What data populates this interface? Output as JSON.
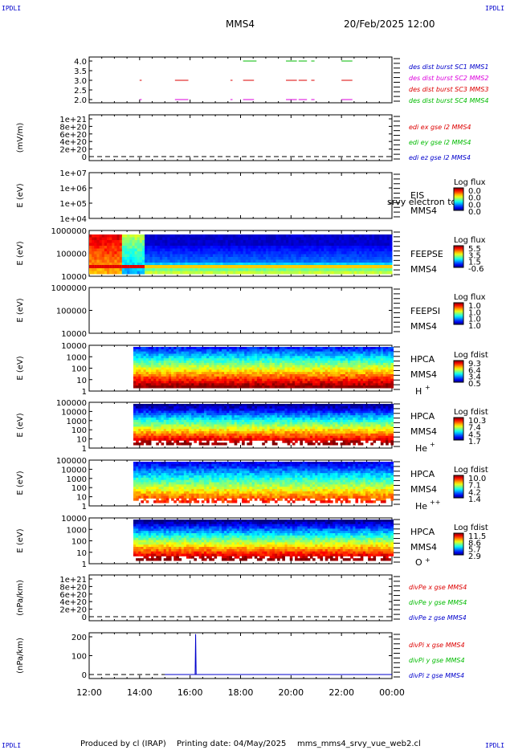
{
  "header": {
    "corner_tl": "IPDLI",
    "corner_tr": "IPDLI",
    "corner_bl": "IPDLI",
    "corner_br": "IPDLI",
    "spacecraft": "MMS4",
    "datetime": "20/Feb/2025 12:00"
  },
  "footer": {
    "produced": "Produced by cl (IRAP)",
    "printing": "Printing date: 04/May/2025",
    "file": "mms_mms4_srvy_vue_web2.cl"
  },
  "time_axis": {
    "ticks": [
      "12:00",
      "14:00",
      "16:00",
      "18:00",
      "20:00",
      "22:00",
      "00:00"
    ]
  },
  "colors": {
    "c1": "#0000cc",
    "c2": "#dd00dd",
    "c3": "#dd0000",
    "c4": "#00bb00",
    "overlay": "#000080"
  },
  "chart_data": [
    {
      "id": "burst",
      "type": "scatter",
      "yticks": [
        "4.0",
        "3.5",
        "3.0",
        "2.5",
        "2.0"
      ],
      "ylim": [
        1.8,
        4.2
      ],
      "legend": [
        {
          "label": "des dist burst SC1 MMS1",
          "color": "#0000cc"
        },
        {
          "label": "des dist burst SC2 MMS2",
          "color": "#dd00dd"
        },
        {
          "label": "des dist burst SC3 MMS3",
          "color": "#dd0000"
        },
        {
          "label": "des dist burst SC4 MMS4",
          "color": "#00bb00"
        }
      ],
      "series": [
        {
          "y": 4.0,
          "color": "#00bb00",
          "segments": [
            [
              18.1,
              18.6
            ],
            [
              19.8,
              20.2
            ],
            [
              20.3,
              20.6
            ],
            [
              20.8,
              20.9
            ],
            [
              22.0,
              22.4
            ]
          ]
        },
        {
          "y": 3.0,
          "color": "#dd0000",
          "segments": [
            [
              14.0,
              14.05
            ],
            [
              15.4,
              15.9
            ],
            [
              17.6,
              17.65
            ],
            [
              18.1,
              18.5
            ],
            [
              19.8,
              20.2
            ],
            [
              20.3,
              20.6
            ],
            [
              20.8,
              20.9
            ],
            [
              22.0,
              22.4
            ]
          ]
        },
        {
          "y": 2.0,
          "color": "#dd00dd",
          "segments": [
            [
              14.0,
              14.05
            ],
            [
              15.4,
              15.9
            ],
            [
              17.6,
              17.65
            ],
            [
              18.1,
              18.5
            ],
            [
              19.8,
              20.2
            ],
            [
              20.3,
              20.6
            ],
            [
              20.8,
              20.9
            ],
            [
              22.0,
              22.4
            ]
          ]
        }
      ]
    },
    {
      "id": "edi",
      "type": "line",
      "ylabel": "(mV/m)",
      "yticks": [
        "1e+21",
        "8e+20",
        "6e+20",
        "4e+20",
        "2e+20",
        "0"
      ],
      "legend": [
        {
          "label": "edi ex gse l2 MMS4",
          "color": "#dd0000"
        },
        {
          "label": "edi ey gse l2 MMS4",
          "color": "#00bb00"
        },
        {
          "label": "edi ez gse l2 MMS4",
          "color": "#0000cc"
        }
      ],
      "zero_line": true
    },
    {
      "id": "eis",
      "type": "heatmap",
      "ylabel": "E (eV)",
      "yticks": [
        "1e+07",
        "1e+06",
        "1e+05",
        "1e+04"
      ],
      "labels": [
        "EIS",
        "MMS4"
      ],
      "overlay_text": "srvy electron to",
      "colorbar": {
        "title": "Log flux",
        "ticks": [
          "0.0",
          "0.0",
          "0.0",
          "0.0"
        ]
      },
      "fill": "none"
    },
    {
      "id": "feepse",
      "type": "heatmap",
      "ylabel": "E (eV)",
      "yticks": [
        "1000000",
        "100000",
        "10000"
      ],
      "labels": [
        "FEEPSE",
        "MMS4"
      ],
      "colorbar": {
        "title": "Log flux",
        "ticks": [
          "5.5",
          "3.5",
          "1.5",
          "-0.6"
        ]
      },
      "fill": "feeps"
    },
    {
      "id": "feepsi",
      "type": "heatmap",
      "ylabel": "E (eV)",
      "yticks": [
        "1000000",
        "100000",
        "10000"
      ],
      "labels": [
        "FEEPSI",
        "MMS4"
      ],
      "colorbar": {
        "title": "Log flux",
        "ticks": [
          "1.0",
          "1.0",
          "1.0",
          "1.0"
        ]
      },
      "fill": "none"
    },
    {
      "id": "hpca_h",
      "type": "heatmap",
      "ylabel": "E (eV)",
      "yticks": [
        "10000",
        "1000",
        "100",
        "10",
        "1"
      ],
      "labels": [
        "HPCA",
        "MMS4"
      ],
      "species": "H",
      "charge": "+",
      "colorbar": {
        "title": "Log fdist",
        "ticks": [
          "9.3",
          "6.4",
          "3.4",
          "0.5"
        ]
      },
      "fill": "h",
      "start_hour": 13.75
    },
    {
      "id": "hpca_he",
      "type": "heatmap",
      "ylabel": "E (eV)",
      "yticks": [
        "100000",
        "10000",
        "1000",
        "100",
        "10",
        "1"
      ],
      "labels": [
        "HPCA",
        "MMS4"
      ],
      "species": "He",
      "charge": "+",
      "colorbar": {
        "title": "Log fdist",
        "ticks": [
          "10.3",
          "7.4",
          "4.5",
          "1.7"
        ]
      },
      "fill": "he",
      "start_hour": 13.75
    },
    {
      "id": "hpca_hepp",
      "type": "heatmap",
      "ylabel": "E (eV)",
      "yticks": [
        "100000",
        "10000",
        "1000",
        "100",
        "10",
        "1"
      ],
      "labels": [
        "HPCA",
        "MMS4"
      ],
      "species": "He",
      "charge": "++",
      "colorbar": {
        "title": "Log fdist",
        "ticks": [
          "10.0",
          "7.1",
          "4.2",
          "1.4"
        ]
      },
      "fill": "hepp",
      "start_hour": 13.75
    },
    {
      "id": "hpca_o",
      "type": "heatmap",
      "ylabel": "E (eV)",
      "yticks": [
        "10000",
        "1000",
        "100",
        "10",
        "1"
      ],
      "labels": [
        "HPCA",
        "MMS4"
      ],
      "species": "O",
      "charge": "+",
      "colorbar": {
        "title": "Log fdist",
        "ticks": [
          "11.5",
          "8.6",
          "5.7",
          "2.9"
        ]
      },
      "fill": "o",
      "start_hour": 13.75
    },
    {
      "id": "divpe",
      "type": "line",
      "ylabel": "(nPa/km)",
      "yticks": [
        "1e+21",
        "8e+20",
        "6e+20",
        "4e+20",
        "2e+20",
        "0"
      ],
      "legend": [
        {
          "label": "divPe x gse MMS4",
          "color": "#dd0000"
        },
        {
          "label": "divPe y gse MMS4",
          "color": "#00bb00"
        },
        {
          "label": "divPe z gse MMS4",
          "color": "#0000cc"
        }
      ],
      "zero_line": true
    },
    {
      "id": "divpi",
      "type": "line",
      "ylabel": "(nPa/km)",
      "yticks": [
        "200",
        "100",
        "0"
      ],
      "ylim": [
        -20,
        260
      ],
      "legend": [
        {
          "label": "divPi x gse MMS4",
          "color": "#dd0000"
        },
        {
          "label": "divPi y gse MMS4",
          "color": "#00bb00"
        },
        {
          "label": "divPi z gse MMS4",
          "color": "#0000cc"
        }
      ],
      "zero_line": true,
      "series": [
        {
          "name": "divPi z gse MMS4",
          "color": "#0000cc",
          "x": [
            15.0,
            16.2,
            16.22,
            16.24,
            16.26,
            24.0
          ],
          "y": [
            0,
            0,
            240,
            0,
            0,
            0
          ]
        }
      ]
    }
  ]
}
